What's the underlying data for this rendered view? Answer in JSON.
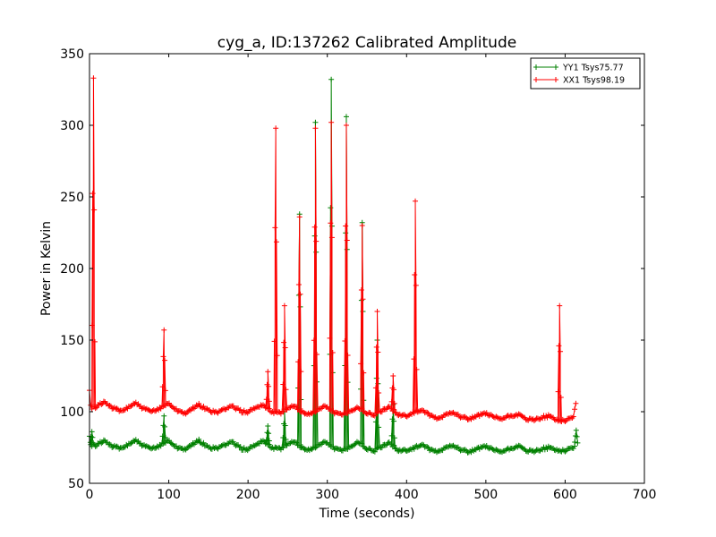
{
  "chart_data": {
    "type": "line",
    "title": "cyg_a, ID:137262 Calibrated Amplitude",
    "xlabel": "Time (seconds)",
    "ylabel": "Power in Kelvin",
    "xlim": [
      0,
      700
    ],
    "ylim": [
      50,
      350
    ],
    "xticks": [
      0,
      100,
      200,
      300,
      400,
      500,
      600,
      700
    ],
    "yticks": [
      50,
      100,
      150,
      200,
      250,
      300,
      350
    ],
    "grid": false,
    "legend_position": "top-right",
    "marker": "plus",
    "series": [
      {
        "name": "YY1 Tsys75.77",
        "color": "#008000",
        "baseline_points": [
          [
            0,
            82
          ],
          [
            2,
            76
          ],
          [
            10,
            77
          ],
          [
            18,
            80
          ],
          [
            28,
            76
          ],
          [
            40,
            74
          ],
          [
            48,
            77
          ],
          [
            58,
            80
          ],
          [
            68,
            76
          ],
          [
            80,
            74
          ],
          [
            90,
            77
          ],
          [
            100,
            80
          ],
          [
            110,
            75
          ],
          [
            122,
            74
          ],
          [
            130,
            77
          ],
          [
            138,
            80
          ],
          [
            150,
            75
          ],
          [
            160,
            74
          ],
          [
            170,
            77
          ],
          [
            180,
            79
          ],
          [
            192,
            74
          ],
          [
            200,
            74
          ],
          [
            210,
            77
          ],
          [
            218,
            80
          ],
          [
            230,
            75
          ],
          [
            240,
            74
          ],
          [
            250,
            77
          ],
          [
            258,
            79
          ],
          [
            270,
            74
          ],
          [
            280,
            74
          ],
          [
            290,
            77
          ],
          [
            298,
            79
          ],
          [
            310,
            74
          ],
          [
            320,
            73
          ],
          [
            330,
            76
          ],
          [
            340,
            79
          ],
          [
            350,
            74
          ],
          [
            360,
            73
          ],
          [
            370,
            76
          ],
          [
            378,
            78
          ],
          [
            390,
            73
          ],
          [
            400,
            73
          ],
          [
            410,
            75
          ],
          [
            420,
            77
          ],
          [
            430,
            73
          ],
          [
            440,
            72
          ],
          [
            450,
            75
          ],
          [
            458,
            77
          ],
          [
            470,
            73
          ],
          [
            480,
            72
          ],
          [
            490,
            74
          ],
          [
            498,
            76
          ],
          [
            510,
            73
          ],
          [
            520,
            72
          ],
          [
            530,
            74
          ],
          [
            540,
            76
          ],
          [
            550,
            73
          ],
          [
            560,
            72
          ],
          [
            570,
            74
          ],
          [
            580,
            75
          ],
          [
            590,
            73
          ],
          [
            600,
            73
          ],
          [
            610,
            75
          ],
          [
            613,
            76
          ]
        ],
        "spikes": [
          [
            3,
            86
          ],
          [
            94,
            97
          ],
          [
            225,
            90
          ],
          [
            246,
            100
          ],
          [
            265,
            238
          ],
          [
            285,
            302
          ],
          [
            305,
            332
          ],
          [
            324,
            306
          ],
          [
            344,
            232
          ],
          [
            363,
            150
          ],
          [
            383,
            105
          ],
          [
            614,
            87
          ]
        ]
      },
      {
        "name": "XX1 Tsys98.19",
        "color": "#ff0000",
        "baseline_points": [
          [
            0,
            114
          ],
          [
            2,
            102
          ],
          [
            10,
            104
          ],
          [
            18,
            107
          ],
          [
            28,
            103
          ],
          [
            40,
            100
          ],
          [
            48,
            103
          ],
          [
            58,
            106
          ],
          [
            68,
            102
          ],
          [
            80,
            100
          ],
          [
            90,
            103
          ],
          [
            100,
            106
          ],
          [
            110,
            101
          ],
          [
            122,
            99
          ],
          [
            130,
            102
          ],
          [
            138,
            105
          ],
          [
            150,
            101
          ],
          [
            160,
            99
          ],
          [
            170,
            102
          ],
          [
            180,
            104
          ],
          [
            192,
            100
          ],
          [
            200,
            100
          ],
          [
            210,
            103
          ],
          [
            218,
            105
          ],
          [
            230,
            100
          ],
          [
            240,
            99
          ],
          [
            250,
            102
          ],
          [
            258,
            104
          ],
          [
            270,
            99
          ],
          [
            280,
            99
          ],
          [
            290,
            102
          ],
          [
            298,
            104
          ],
          [
            310,
            99
          ],
          [
            320,
            98
          ],
          [
            330,
            101
          ],
          [
            340,
            103
          ],
          [
            350,
            99
          ],
          [
            360,
            98
          ],
          [
            370,
            101
          ],
          [
            378,
            103
          ],
          [
            390,
            98
          ],
          [
            400,
            97
          ],
          [
            410,
            100
          ],
          [
            420,
            101
          ],
          [
            430,
            97
          ],
          [
            440,
            95
          ],
          [
            450,
            98
          ],
          [
            458,
            100
          ],
          [
            470,
            96
          ],
          [
            480,
            95
          ],
          [
            490,
            97
          ],
          [
            498,
            99
          ],
          [
            510,
            96
          ],
          [
            520,
            95
          ],
          [
            530,
            97
          ],
          [
            540,
            98
          ],
          [
            550,
            95
          ],
          [
            560,
            94
          ],
          [
            570,
            96
          ],
          [
            580,
            97
          ],
          [
            590,
            94
          ],
          [
            600,
            94
          ],
          [
            610,
            96
          ],
          [
            614,
            107
          ]
        ],
        "spikes": [
          [
            5,
            333
          ],
          [
            94,
            157
          ],
          [
            225,
            128
          ],
          [
            235,
            298
          ],
          [
            246,
            174
          ],
          [
            265,
            236
          ],
          [
            285,
            298
          ],
          [
            305,
            302
          ],
          [
            324,
            300
          ],
          [
            344,
            230
          ],
          [
            363,
            170
          ],
          [
            383,
            125
          ],
          [
            411,
            247
          ],
          [
            593,
            174
          ]
        ]
      }
    ]
  }
}
